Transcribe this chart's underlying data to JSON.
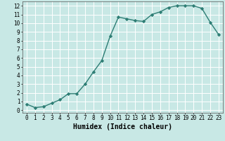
{
  "x": [
    0,
    1,
    2,
    3,
    4,
    5,
    6,
    7,
    8,
    9,
    10,
    11,
    12,
    13,
    14,
    15,
    16,
    17,
    18,
    19,
    20,
    21,
    22,
    23
  ],
  "y": [
    0.7,
    0.3,
    0.4,
    0.8,
    1.2,
    1.9,
    1.9,
    3.0,
    4.4,
    5.7,
    8.5,
    10.7,
    10.5,
    10.3,
    10.2,
    11.0,
    11.3,
    11.8,
    12.0,
    12.0,
    12.0,
    11.7,
    10.1,
    8.7
  ],
  "line_color": "#2d7d74",
  "marker": "D",
  "marker_size": 2.2,
  "bg_color": "#c8e8e5",
  "grid_color": "#ffffff",
  "xlabel": "Humidex (Indice chaleur)",
  "ylim": [
    -0.3,
    12.5
  ],
  "xlim": [
    -0.5,
    23.5
  ],
  "yticks": [
    0,
    1,
    2,
    3,
    4,
    5,
    6,
    7,
    8,
    9,
    10,
    11,
    12
  ],
  "xticks": [
    0,
    1,
    2,
    3,
    4,
    5,
    6,
    7,
    8,
    9,
    10,
    11,
    12,
    13,
    14,
    15,
    16,
    17,
    18,
    19,
    20,
    21,
    22,
    23
  ],
  "tick_fontsize": 5.5,
  "xlabel_fontsize": 7.0,
  "line_width": 1.0
}
